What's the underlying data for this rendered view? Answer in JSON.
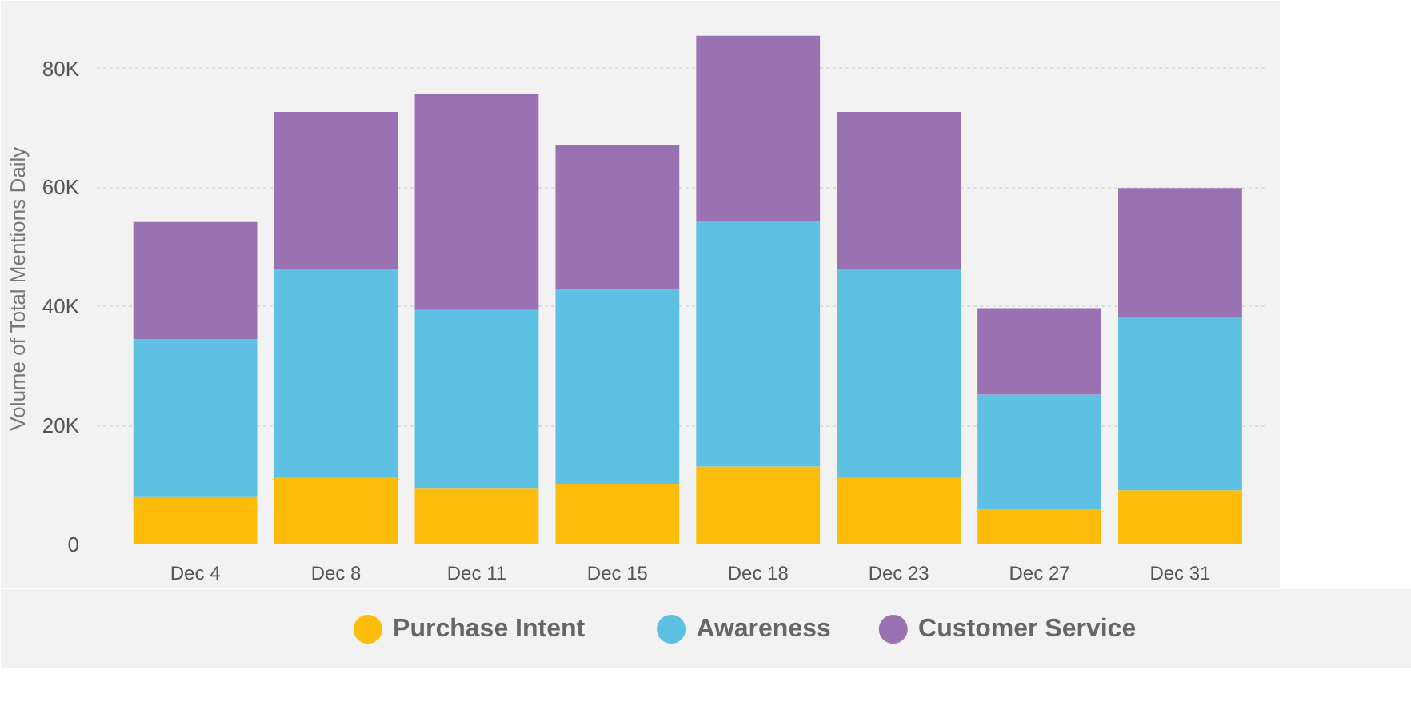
{
  "chart_data": {
    "type": "bar",
    "stacked": true,
    "ylabel": "Volume of Total Mentions Daily",
    "categories": [
      "Dec 4",
      "Dec 8",
      "Dec 11",
      "Dec 15",
      "Dec 18",
      "Dec 23",
      "Dec 27",
      "Dec 31"
    ],
    "series": [
      {
        "name": "Purchase Intent",
        "color": "#fdbc0a",
        "values": [
          8100,
          11200,
          9500,
          10200,
          13100,
          11200,
          5900,
          9100
        ]
      },
      {
        "name": "Awareness",
        "color": "#5ec1e3",
        "values": [
          26400,
          35100,
          29900,
          32600,
          41300,
          35100,
          19300,
          29100
        ]
      },
      {
        "name": "Customer Service",
        "color": "#9a72b1",
        "values": [
          19700,
          26400,
          36400,
          24400,
          31100,
          26400,
          14500,
          21700
        ]
      }
    ],
    "ylim": [
      0,
      86000
    ],
    "yticks": [
      {
        "value": 0,
        "label": "0"
      },
      {
        "value": 20000,
        "label": "20K"
      },
      {
        "value": 40000,
        "label": "40K"
      },
      {
        "value": 60000,
        "label": "60K"
      },
      {
        "value": 80000,
        "label": "80K"
      }
    ],
    "grid": "y",
    "legend": "bottom"
  }
}
